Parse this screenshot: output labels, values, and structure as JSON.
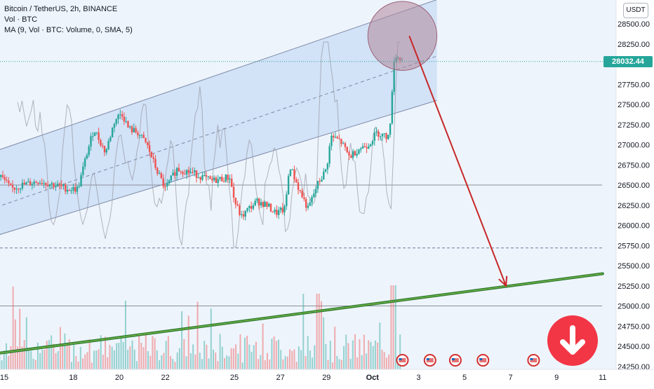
{
  "legend": {
    "symbol_line": "Bitcoin / TetherUS, 2h, BINANCE",
    "volume_line": "Vol · BTC",
    "ma_line": "MA (9, Vol · BTC: Volume, 0, SMA, 5)"
  },
  "toolbar": {
    "currency": "USDT"
  },
  "current_price": {
    "label": "28032.44",
    "value": 28032.44
  },
  "icons": {
    "signal_button": "arrow-down-circle-icon",
    "event_marker": "flag-us-icon"
  },
  "colors": {
    "up": "#26a69a",
    "down": "#ef5350",
    "channel_fill": "#bbd4f3",
    "trend_line": "#2e7d32",
    "forecast_arrow": "#c62828",
    "highlight_circle": "#b0879a",
    "signal_button": "#f23645",
    "volume_ma": "#9598a1"
  },
  "chart_data": {
    "type": "candlestick",
    "title": "Bitcoin / TetherUS, 2h, BINANCE",
    "ylim": [
      24250,
      28750
    ],
    "y_ticks": [
      28500,
      28250,
      28000,
      27750,
      27500,
      27250,
      27000,
      26750,
      26500,
      26250,
      26000,
      25750,
      25500,
      25250,
      25000,
      24750,
      24500,
      24250
    ],
    "y_tick_labels": [
      "28500.00",
      "28250.00",
      "28000.00",
      "27750.00",
      "27500.00",
      "27250.00",
      "27000.00",
      "26750.00",
      "26500.00",
      "26250.00",
      "26000.00",
      "25750.00",
      "25500.00",
      "25250.00",
      "25000.00",
      "24750.00",
      "24500.00",
      "24250.00"
    ],
    "x_ticks": [
      {
        "label": "15",
        "day": 0
      },
      {
        "label": "18",
        "day": 3
      },
      {
        "label": "20",
        "day": 5
      },
      {
        "label": "22",
        "day": 7
      },
      {
        "label": "25",
        "day": 10
      },
      {
        "label": "27",
        "day": 12
      },
      {
        "label": "29",
        "day": 14
      },
      {
        "label": "Oct",
        "day": 16
      },
      {
        "label": "3",
        "day": 18
      },
      {
        "label": "5",
        "day": 20
      },
      {
        "label": "7",
        "day": 22
      },
      {
        "label": "9",
        "day": 24
      },
      {
        "label": "11",
        "day": 26
      }
    ],
    "last_price": 28032.44,
    "path_days": [
      -0.4,
      0.3,
      0.8,
      1.5,
      2.2,
      2.8,
      3.2,
      3.6,
      3.9,
      4.4,
      4.8,
      5.1,
      5.4,
      5.8,
      6.2,
      6.6,
      7.0,
      7.5,
      8.2,
      9.0,
      9.8,
      10.0,
      10.3,
      10.6,
      11.0,
      11.4,
      11.8,
      12.2,
      12.4,
      12.8,
      13.2,
      13.6,
      14.0,
      14.2,
      14.6,
      15.0,
      15.4,
      15.8,
      16.2,
      16.6,
      16.8,
      16.9,
      17.1,
      17.3
    ],
    "path_prices": [
      26700,
      26450,
      26500,
      26550,
      26500,
      26450,
      26450,
      26900,
      27200,
      26900,
      27300,
      27400,
      27200,
      27150,
      27000,
      26700,
      26450,
      26700,
      26650,
      26550,
      26600,
      26300,
      26100,
      26200,
      26300,
      26250,
      26150,
      26200,
      26750,
      26450,
      26200,
      26500,
      26700,
      27100,
      27050,
      26850,
      26950,
      27000,
      27150,
      27100,
      27250,
      28050,
      28100,
      28032.44
    ],
    "channel": {
      "upper": {
        "start": [
          -0.6,
          26900
        ],
        "end": [
          18.8,
          28800
        ]
      },
      "middle": {
        "start": [
          -0.6,
          26200
        ],
        "end": [
          18.8,
          28100
        ]
      },
      "lower": {
        "start": [
          -0.6,
          25850
        ],
        "end": [
          18.8,
          27550
        ]
      }
    },
    "support_trendline": {
      "start": [
        -0.6,
        24400
      ],
      "end": [
        26.0,
        25400
      ]
    },
    "horizontal_levels": [
      {
        "price": 26500,
        "style": "solid"
      },
      {
        "price": 25720,
        "style": "dashed"
      },
      {
        "price": 25000,
        "style": "solid"
      }
    ],
    "forecast_arrow": {
      "start": [
        17.6,
        28350
      ],
      "end": [
        21.8,
        25250
      ]
    },
    "highlight_zone": {
      "center": [
        17.3,
        28350
      ],
      "radius_days": 1.5
    },
    "event_flag_days": [
      17.3,
      18.5,
      19.6,
      20.8,
      23.0
    ],
    "volume_bars": 180,
    "volume_ma_period": 9
  }
}
